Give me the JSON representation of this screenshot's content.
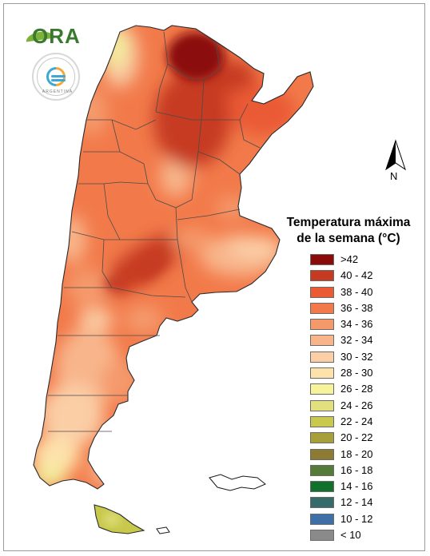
{
  "logos": {
    "ora": {
      "text": "ORA",
      "name": "ORA"
    },
    "smn": {
      "ring_text": "SERVICIO METEOROLÓGICO NACIONAL",
      "country": "ARGENTINA"
    }
  },
  "north_arrow": {
    "label": "N"
  },
  "legend": {
    "title_line1": "Temperatura máxima",
    "title_line2": "de la semana (°C)",
    "items": [
      {
        "label": ">42",
        "color": "#8b0a0a"
      },
      {
        "label": "40 - 42",
        "color": "#c63a22"
      },
      {
        "label": "38 - 40",
        "color": "#ea5a35"
      },
      {
        "label": "36 - 38",
        "color": "#f27a4a"
      },
      {
        "label": "34 - 36",
        "color": "#f5996b"
      },
      {
        "label": "32 - 34",
        "color": "#f8b58b"
      },
      {
        "label": "30 - 32",
        "color": "#fbcea6"
      },
      {
        "label": "28 - 30",
        "color": "#fde2ac"
      },
      {
        "label": "26 - 28",
        "color": "#f7f39b"
      },
      {
        "label": "24 - 26",
        "color": "#e2e07e"
      },
      {
        "label": "22 - 24",
        "color": "#c7c84c"
      },
      {
        "label": "20 - 22",
        "color": "#a7a03a"
      },
      {
        "label": "18 - 20",
        "color": "#8d7a33"
      },
      {
        "label": "16 - 18",
        "color": "#567a37"
      },
      {
        "label": "14 - 16",
        "color": "#11712b"
      },
      {
        "label": "12 - 14",
        "color": "#366b6b"
      },
      {
        "label": "10 - 12",
        "color": "#3e6fa6"
      },
      {
        "label": "< 10",
        "color": "#8a8a8a"
      }
    ]
  },
  "colors": {
    "land_base": "#f27a4a",
    "border": "#3a3a3a"
  }
}
